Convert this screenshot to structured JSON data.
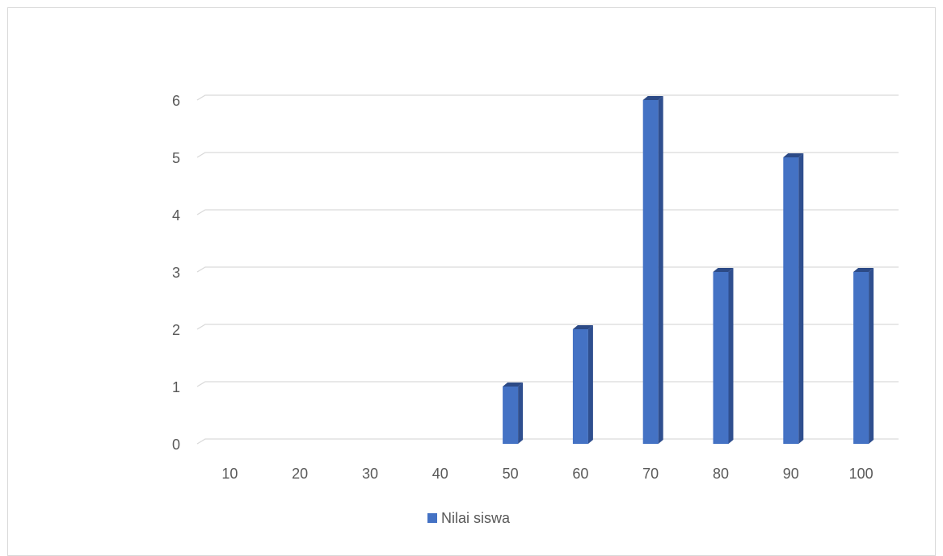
{
  "chart_data": {
    "type": "bar",
    "categories": [
      "10",
      "20",
      "30",
      "40",
      "50",
      "60",
      "70",
      "80",
      "90",
      "100"
    ],
    "series": [
      {
        "name": "Nilai siswa",
        "values": [
          0,
          0,
          0,
          0,
          1,
          2,
          6,
          3,
          5,
          3
        ],
        "color": "#4472c4"
      }
    ],
    "yticks": [
      "0",
      "1",
      "2",
      "3",
      "4",
      "5",
      "6"
    ],
    "ylim": [
      0,
      6
    ],
    "grid": true,
    "legend_position": "bottom",
    "bar_style": "3d-column",
    "colors": {
      "bar_front": "#4472c4",
      "bar_side": "#2f4f8f",
      "bar_top": "#2c4a86",
      "grid": "#d9d9d9",
      "text": "#595959"
    }
  }
}
